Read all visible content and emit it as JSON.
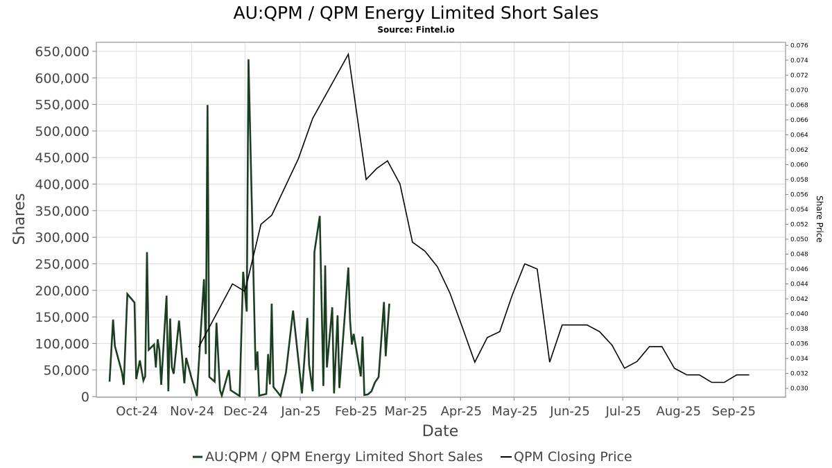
{
  "chart_data": {
    "type": "line",
    "title": "AU:QPM / QPM Energy Limited Short Sales",
    "subtitle": "Source: Fintel.io",
    "xlabel": "Date",
    "ylabel": "Shares",
    "ylabel_right": "Share Price",
    "x_range": [
      "2024-09-09",
      "2025-09-30"
    ],
    "x_ticks": [
      {
        "date": "2024-10-01",
        "label": "Oct-24"
      },
      {
        "date": "2024-11-01",
        "label": "Nov-24"
      },
      {
        "date": "2024-12-01",
        "label": "Dec-24"
      },
      {
        "date": "2025-01-01",
        "label": "Jan-25"
      },
      {
        "date": "2025-02-01",
        "label": "Feb-25"
      },
      {
        "date": "2025-03-01",
        "label": "Mar-25"
      },
      {
        "date": "2025-04-01",
        "label": "Apr-25"
      },
      {
        "date": "2025-05-01",
        "label": "May-25"
      },
      {
        "date": "2025-06-01",
        "label": "Jun-25"
      },
      {
        "date": "2025-07-01",
        "label": "Jul-25"
      },
      {
        "date": "2025-08-01",
        "label": "Aug-25"
      },
      {
        "date": "2025-09-01",
        "label": "Sep-25"
      }
    ],
    "ylim": [
      0,
      650000
    ],
    "y_ticks": [
      0,
      50000,
      100000,
      150000,
      200000,
      250000,
      300000,
      350000,
      400000,
      450000,
      500000,
      550000,
      600000,
      650000
    ],
    "y_tick_labels": [
      "0",
      "50,000",
      "100,000",
      "150,000",
      "200,000",
      "250,000",
      "300,000",
      "350,000",
      "400,000",
      "450,000",
      "500,000",
      "550,000",
      "600,000",
      "650,000"
    ],
    "ylim_right": [
      0.0288,
      0.0764
    ],
    "y_ticks_right": [
      "0.030",
      "0.032",
      "0.034",
      "0.036",
      "0.038",
      "0.040",
      "0.042",
      "0.044",
      "0.046",
      "0.048",
      "0.050",
      "0.052",
      "0.054",
      "0.056",
      "0.058",
      "0.060",
      "0.062",
      "0.064",
      "0.066",
      "0.068",
      "0.070",
      "0.072",
      "0.074",
      "0.076"
    ],
    "grid": true,
    "legend_position": "bottom",
    "series": [
      {
        "name": "AU:QPM / QPM Energy Limited Short Sales",
        "color": "#1b3d20",
        "axis": "left",
        "points": [
          [
            "2024-09-16",
            28000
          ],
          [
            "2024-09-18",
            145000
          ],
          [
            "2024-09-19",
            95000
          ],
          [
            "2024-09-23",
            45000
          ],
          [
            "2024-09-24",
            22000
          ],
          [
            "2024-09-26",
            193000
          ],
          [
            "2024-09-30",
            177000
          ],
          [
            "2024-10-01",
            33000
          ],
          [
            "2024-10-03",
            68000
          ],
          [
            "2024-10-05",
            30000
          ],
          [
            "2024-10-06",
            38000
          ],
          [
            "2024-10-07",
            272000
          ],
          [
            "2024-10-08",
            88000
          ],
          [
            "2024-10-11",
            98000
          ],
          [
            "2024-10-12",
            55000
          ],
          [
            "2024-10-13",
            108000
          ],
          [
            "2024-10-14",
            88000
          ],
          [
            "2024-10-15",
            22000
          ],
          [
            "2024-10-18",
            190000
          ],
          [
            "2024-10-19",
            10000
          ],
          [
            "2024-10-20",
            147000
          ],
          [
            "2024-10-21",
            55000
          ],
          [
            "2024-10-22",
            43000
          ],
          [
            "2024-10-25",
            143000
          ],
          [
            "2024-10-28",
            25000
          ],
          [
            "2024-10-29",
            73000
          ],
          [
            "2024-11-01",
            35000
          ],
          [
            "2024-11-04",
            1000
          ],
          [
            "2024-11-08",
            221000
          ],
          [
            "2024-11-09",
            80000
          ],
          [
            "2024-11-10",
            549000
          ],
          [
            "2024-11-11",
            37000
          ],
          [
            "2024-11-14",
            28000
          ],
          [
            "2024-11-15",
            139000
          ],
          [
            "2024-11-17",
            12000
          ],
          [
            "2024-11-18",
            2000
          ],
          [
            "2024-11-22",
            50000
          ],
          [
            "2024-11-23",
            12000
          ],
          [
            "2024-11-28",
            1000
          ],
          [
            "2024-11-30",
            235000
          ],
          [
            "2024-12-02",
            160000
          ],
          [
            "2024-12-03",
            635000
          ],
          [
            "2024-12-07",
            50000
          ],
          [
            "2024-12-08",
            85000
          ],
          [
            "2024-12-09",
            2000
          ],
          [
            "2024-12-13",
            5000
          ],
          [
            "2024-12-14",
            80000
          ],
          [
            "2024-12-15",
            23000
          ],
          [
            "2024-12-16",
            175000
          ],
          [
            "2024-12-17",
            18000
          ],
          [
            "2024-12-21",
            1000
          ],
          [
            "2024-12-24",
            45000
          ],
          [
            "2024-12-28",
            162000
          ],
          [
            "2025-01-02",
            6000
          ],
          [
            "2025-01-05",
            148000
          ],
          [
            "2025-01-06",
            60000
          ],
          [
            "2025-01-08",
            10000
          ],
          [
            "2025-01-09",
            272000
          ],
          [
            "2025-01-12",
            340000
          ],
          [
            "2025-01-14",
            20000
          ],
          [
            "2025-01-15",
            247000
          ],
          [
            "2025-01-16",
            55000
          ],
          [
            "2025-01-19",
            168000
          ],
          [
            "2025-01-20",
            6000
          ],
          [
            "2025-01-22",
            153000
          ],
          [
            "2025-01-23",
            16000
          ],
          [
            "2025-01-28",
            243000
          ],
          [
            "2025-01-29",
            143000
          ],
          [
            "2025-01-30",
            98000
          ],
          [
            "2025-01-31",
            118000
          ],
          [
            "2025-02-01",
            99000
          ],
          [
            "2025-02-04",
            38000
          ],
          [
            "2025-02-05",
            113000
          ],
          [
            "2025-02-06",
            3000
          ],
          [
            "2025-02-08",
            4000
          ],
          [
            "2025-02-10",
            10000
          ],
          [
            "2025-02-12",
            27000
          ],
          [
            "2025-02-14",
            37000
          ],
          [
            "2025-02-17",
            178000
          ],
          [
            "2025-02-18",
            76000
          ],
          [
            "2025-02-20",
            175000
          ]
        ]
      },
      {
        "name": "QPM Closing Price",
        "color": "#000000",
        "axis": "right",
        "points": [
          [
            "2024-11-05",
            0.0355
          ],
          [
            "2024-11-24",
            0.044
          ],
          [
            "2024-12-01",
            0.043
          ],
          [
            "2024-12-10",
            0.052
          ],
          [
            "2024-12-16",
            0.0532
          ],
          [
            "2024-12-31",
            0.0608
          ],
          [
            "2025-01-08",
            0.0662
          ],
          [
            "2025-01-15",
            0.0692
          ],
          [
            "2025-01-28",
            0.0748
          ],
          [
            "2025-02-07",
            0.058
          ],
          [
            "2025-02-13",
            0.0595
          ],
          [
            "2025-02-19",
            0.0605
          ],
          [
            "2025-02-26",
            0.0574
          ],
          [
            "2025-03-05",
            0.0496
          ],
          [
            "2025-03-12",
            0.0484
          ],
          [
            "2025-03-19",
            0.0463
          ],
          [
            "2025-03-26",
            0.0428
          ],
          [
            "2025-04-02",
            0.0382
          ],
          [
            "2025-04-09",
            0.0335
          ],
          [
            "2025-04-16",
            0.0368
          ],
          [
            "2025-04-23",
            0.0376
          ],
          [
            "2025-04-30",
            0.0425
          ],
          [
            "2025-05-07",
            0.0467
          ],
          [
            "2025-05-14",
            0.046
          ],
          [
            "2025-05-21",
            0.0335
          ],
          [
            "2025-05-28",
            0.0385
          ],
          [
            "2025-06-04",
            0.0385
          ],
          [
            "2025-06-11",
            0.0385
          ],
          [
            "2025-06-18",
            0.0376
          ],
          [
            "2025-06-25",
            0.0358
          ],
          [
            "2025-07-02",
            0.0327
          ],
          [
            "2025-07-09",
            0.0336
          ],
          [
            "2025-07-16",
            0.0356
          ],
          [
            "2025-07-23",
            0.0356
          ],
          [
            "2025-07-30",
            0.0327
          ],
          [
            "2025-08-06",
            0.0318
          ],
          [
            "2025-08-13",
            0.0318
          ],
          [
            "2025-08-20",
            0.0308
          ],
          [
            "2025-08-27",
            0.0308
          ],
          [
            "2025-09-03",
            0.0318
          ],
          [
            "2025-09-10",
            0.0318
          ]
        ]
      }
    ]
  }
}
